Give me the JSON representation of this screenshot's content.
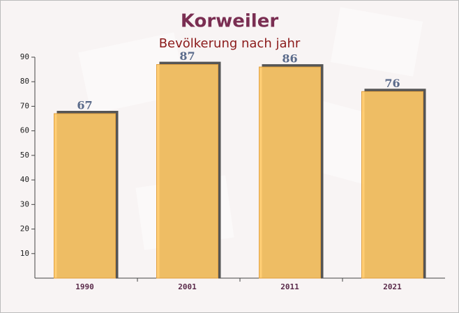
{
  "chart_data": {
    "type": "bar",
    "title": "Korweiler",
    "subtitle": "Bevölkerung nach jahr",
    "categories": [
      "1990",
      "2001",
      "2011",
      "2021"
    ],
    "values": [
      67,
      87,
      86,
      76
    ],
    "color": "#ffc966",
    "ylim": [
      0,
      90
    ],
    "yticks": [
      10,
      20,
      30,
      40,
      50,
      60,
      70,
      80,
      90
    ]
  }
}
